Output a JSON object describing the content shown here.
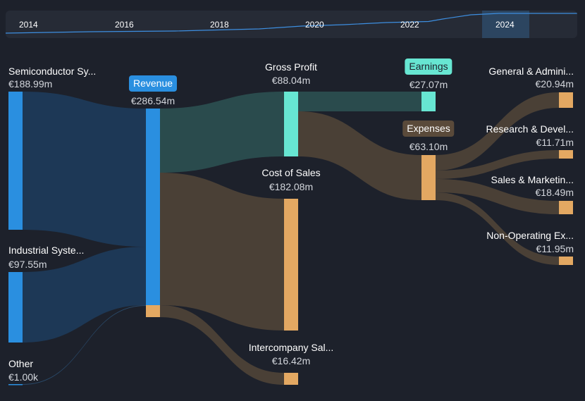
{
  "timeline": {
    "years": [
      "2014",
      "2016",
      "2018",
      "2020",
      "2022",
      "2024"
    ],
    "selected": "2024"
  },
  "nodes": {
    "semiconductor": {
      "label": "Semiconductor Sy...",
      "value": "€188.99m"
    },
    "industrial": {
      "label": "Industrial Syste...",
      "value": "€97.55m"
    },
    "other": {
      "label": "Other",
      "value": "€1.00k"
    },
    "revenue": {
      "label": "Revenue",
      "value": "€286.54m"
    },
    "gross_profit": {
      "label": "Gross Profit",
      "value": "€88.04m"
    },
    "cost_of_sales": {
      "label": "Cost of Sales",
      "value": "€182.08m"
    },
    "intercompany": {
      "label": "Intercompany Sal...",
      "value": "€16.42m"
    },
    "earnings": {
      "label": "Earnings",
      "value": "€27.07m"
    },
    "expenses": {
      "label": "Expenses",
      "value": "€63.10m"
    },
    "general_admin": {
      "label": "General & Admini...",
      "value": "€20.94m"
    },
    "research": {
      "label": "Research & Devel...",
      "value": "€11.71m"
    },
    "sales_marketing": {
      "label": "Sales & Marketin...",
      "value": "€18.49m"
    },
    "non_operating": {
      "label": "Non-Operating Ex...",
      "value": "€11.95m"
    }
  },
  "colors": {
    "background": "#1d212b",
    "revenue_blue": "#2a8fe0",
    "profit_teal": "#67e6d2",
    "cost_orange": "#e3a862",
    "flow_blue": "#1e3a58",
    "flow_teal": "#2a4b4d",
    "flow_brown": "#4a4036",
    "expenses_badge": "#5a4a3a"
  }
}
